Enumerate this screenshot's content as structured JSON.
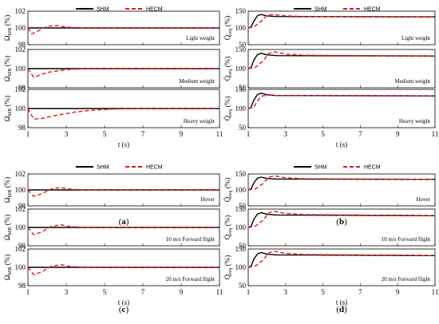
{
  "legend": {
    "shm": "SHM",
    "hecm": "HECM"
  },
  "colors": {
    "shm": "#000000",
    "hecm": "#e8141b"
  },
  "chart_data": [
    {
      "id": "a",
      "caption": "a",
      "type": "line",
      "ylabel_main": "Ω",
      "ylabel_sub": "MR",
      "ylabel_unit": " (%)",
      "xlabel": "t (s)",
      "xlim": [
        1,
        11
      ],
      "xticks": [
        "1",
        "3",
        "5",
        "7",
        "9",
        "11"
      ],
      "panels": [
        {
          "note": "Light weight",
          "ylim": [
            98,
            102
          ],
          "yticks": [
            "98",
            "100",
            "102"
          ],
          "series": [
            {
              "name": "SHM",
              "x": [
                1,
                11
              ],
              "y": [
                100,
                100
              ]
            },
            {
              "name": "HECM",
              "x": [
                1,
                1.2,
                1.5,
                2,
                2.5,
                3,
                4,
                11
              ],
              "y": [
                100,
                99.3,
                99.6,
                100.2,
                100.3,
                100.1,
                100,
                100
              ]
            }
          ]
        },
        {
          "note": "Medium weight",
          "ylim": [
            98,
            102
          ],
          "yticks": [
            "98",
            "100",
            "102"
          ],
          "series": [
            {
              "name": "SHM",
              "x": [
                1,
                11
              ],
              "y": [
                100,
                100
              ]
            },
            {
              "name": "HECM",
              "x": [
                1,
                1.3,
                2,
                3,
                4,
                5,
                11
              ],
              "y": [
                100,
                99.1,
                99.6,
                99.9,
                100,
                100,
                100
              ]
            }
          ]
        },
        {
          "note": "Heavy weight",
          "ylim": [
            98,
            102
          ],
          "yticks": [
            "98",
            "100",
            "102"
          ],
          "series": [
            {
              "name": "SHM",
              "x": [
                1,
                11
              ],
              "y": [
                100,
                100
              ]
            },
            {
              "name": "HECM",
              "x": [
                1,
                1.3,
                1.7,
                2.5,
                3.5,
                4.5,
                5.5,
                6.5,
                11
              ],
              "y": [
                100,
                98.9,
                98.95,
                99.3,
                99.65,
                99.85,
                99.95,
                100,
                100
              ]
            }
          ]
        }
      ]
    },
    {
      "id": "b",
      "caption": "b",
      "type": "line",
      "ylabel_main": "Q̇",
      "ylabel_sub": "req",
      "ylabel_unit": " (%)",
      "xlabel": "t (s)",
      "xlim": [
        1,
        11
      ],
      "xticks": [
        "1",
        "3",
        "5",
        "7",
        "9",
        "11"
      ],
      "panels": [
        {
          "note": "Light weight",
          "ylim": [
            50,
            150
          ],
          "yticks": [
            "50",
            "100",
            "150"
          ],
          "series": [
            {
              "name": "SHM",
              "x": [
                1,
                1.15,
                1.3,
                1.5,
                1.7,
                2,
                2.5,
                11
              ],
              "y": [
                100,
                103,
                120,
                137,
                140,
                136,
                134,
                133
              ]
            },
            {
              "name": "HECM",
              "x": [
                1,
                1.3,
                1.7,
                2,
                2.3,
                3,
                4,
                11
              ],
              "y": [
                100,
                103,
                120,
                138,
                140,
                136,
                134,
                133
              ]
            }
          ]
        },
        {
          "note": "Medium weight",
          "ylim": [
            50,
            150
          ],
          "yticks": [
            "50",
            "100",
            "150"
          ],
          "series": [
            {
              "name": "SHM",
              "x": [
                1,
                1.15,
                1.3,
                1.5,
                1.7,
                2,
                2.5,
                11
              ],
              "y": [
                100,
                103,
                122,
                137,
                140,
                136,
                134,
                133
              ]
            },
            {
              "name": "HECM",
              "x": [
                1,
                1.4,
                1.8,
                2.1,
                2.4,
                3,
                4,
                11
              ],
              "y": [
                100,
                104,
                120,
                140,
                144,
                138,
                135,
                133
              ]
            }
          ]
        },
        {
          "note": "Heavy weight",
          "ylim": [
            50,
            150
          ],
          "yticks": [
            "50",
            "100",
            "150"
          ],
          "series": [
            {
              "name": "SHM",
              "x": [
                1,
                1.15,
                1.3,
                1.5,
                1.7,
                2,
                2.5,
                11
              ],
              "y": [
                100,
                103,
                122,
                137,
                140,
                136,
                134,
                133
              ]
            },
            {
              "name": "HECM",
              "x": [
                1,
                1.3,
                1.5,
                1.7,
                2,
                2.5,
                11
              ],
              "y": [
                100,
                104,
                120,
                132,
                135,
                134,
                133
              ]
            }
          ]
        }
      ]
    },
    {
      "id": "c",
      "caption": "c",
      "type": "line",
      "ylabel_main": "Ω",
      "ylabel_sub": "MR",
      "ylabel_unit": " (%)",
      "xlabel": "t (s)",
      "xlim": [
        1,
        11
      ],
      "xticks": [
        "1",
        "3",
        "5",
        "7",
        "9",
        "11"
      ],
      "panels": [
        {
          "note": "Hover",
          "ylim": [
            98,
            102
          ],
          "yticks": [
            "98",
            "100",
            "102"
          ],
          "series": [
            {
              "name": "SHM",
              "x": [
                1,
                11
              ],
              "y": [
                100,
                100
              ]
            },
            {
              "name": "HECM",
              "x": [
                1,
                1.3,
                1.7,
                2.2,
                2.7,
                3.2,
                4,
                11
              ],
              "y": [
                100,
                99.2,
                99.5,
                100.1,
                100.3,
                100.1,
                100,
                100
              ]
            }
          ]
        },
        {
          "note": "10 m/s Forward flight",
          "ylim": [
            98,
            102
          ],
          "yticks": [
            "98",
            "100",
            "102"
          ],
          "series": [
            {
              "name": "SHM",
              "x": [
                1,
                11
              ],
              "y": [
                100,
                100
              ]
            },
            {
              "name": "HECM",
              "x": [
                1,
                1.3,
                1.7,
                2.2,
                2.7,
                3.2,
                4,
                11
              ],
              "y": [
                100,
                99.2,
                99.5,
                100.1,
                100.3,
                100.1,
                100,
                100
              ]
            }
          ]
        },
        {
          "note": "20 m/s Forward flight",
          "ylim": [
            98,
            102
          ],
          "yticks": [
            "98",
            "100",
            "102"
          ],
          "series": [
            {
              "name": "SHM",
              "x": [
                1,
                11
              ],
              "y": [
                100,
                100
              ]
            },
            {
              "name": "HECM",
              "x": [
                1,
                1.3,
                1.7,
                2.2,
                2.7,
                3.2,
                4,
                11
              ],
              "y": [
                100,
                99.2,
                99.5,
                100.1,
                100.3,
                100.1,
                100,
                100
              ]
            }
          ]
        }
      ]
    },
    {
      "id": "d",
      "caption": "d",
      "type": "line",
      "ylabel_main": "Q̇",
      "ylabel_sub": "req",
      "ylabel_unit": " (%)",
      "xlabel": "t (s)",
      "xlim": [
        1,
        11
      ],
      "xticks": [
        "1",
        "3",
        "5",
        "7",
        "9",
        "11"
      ],
      "panels": [
        {
          "note": "Hover",
          "ylim": [
            50,
            150
          ],
          "yticks": [
            "50",
            "100",
            "150"
          ],
          "series": [
            {
              "name": "SHM",
              "x": [
                1,
                1.15,
                1.3,
                1.5,
                1.7,
                2,
                2.5,
                11
              ],
              "y": [
                100,
                103,
                122,
                137,
                140,
                136,
                134,
                133
              ]
            },
            {
              "name": "HECM",
              "x": [
                1,
                1.4,
                1.8,
                2.1,
                2.4,
                3,
                4,
                11
              ],
              "y": [
                100,
                104,
                120,
                140,
                144,
                138,
                135,
                133
              ]
            }
          ]
        },
        {
          "note": "10 m/s Forward flight",
          "ylim": [
            50,
            150
          ],
          "yticks": [
            "50",
            "100",
            "150"
          ],
          "series": [
            {
              "name": "SHM",
              "x": [
                1,
                1.15,
                1.3,
                1.5,
                1.7,
                2,
                2.5,
                11
              ],
              "y": [
                100,
                103,
                122,
                137,
                140,
                136,
                134,
                132
              ]
            },
            {
              "name": "HECM",
              "x": [
                1,
                1.4,
                1.8,
                2.1,
                2.4,
                3,
                4,
                11
              ],
              "y": [
                100,
                104,
                120,
                140,
                144,
                138,
                135,
                132
              ]
            }
          ]
        },
        {
          "note": "20 m/s Forward flight",
          "ylim": [
            50,
            150
          ],
          "yticks": [
            "50",
            "100",
            "150"
          ],
          "series": [
            {
              "name": "SHM",
              "x": [
                1,
                1.15,
                1.3,
                1.5,
                1.7,
                2,
                2.5,
                11
              ],
              "y": [
                100,
                103,
                122,
                137,
                140,
                136,
                134,
                132
              ]
            },
            {
              "name": "HECM",
              "x": [
                1,
                1.4,
                1.8,
                2.1,
                2.4,
                3,
                4,
                11
              ],
              "y": [
                100,
                104,
                120,
                140,
                144,
                138,
                135,
                132
              ]
            }
          ]
        }
      ]
    }
  ]
}
